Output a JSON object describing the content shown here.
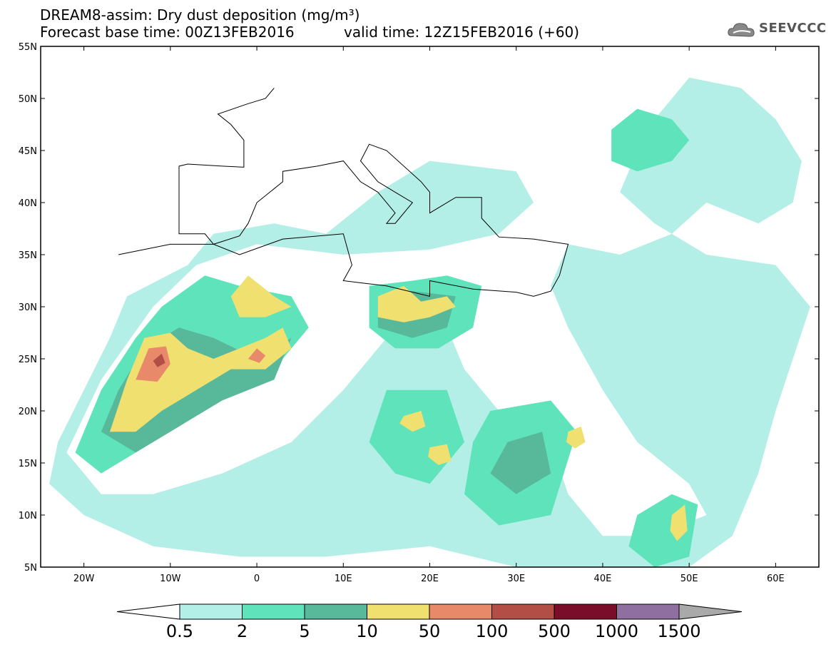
{
  "header": {
    "title_line1": "DREAM8-assim: Dry dust deposition (mg/m³)",
    "title_line2": "Forecast base time: 00Z13FEB2016",
    "valid_time": "valid time: 12Z15FEB2016 (+60)"
  },
  "logo": {
    "text": "SEEVCCC",
    "icon": "cloud-icon"
  },
  "map": {
    "lon_range": [
      -25,
      65
    ],
    "lat_range": [
      5,
      55
    ],
    "lat_ticks": [
      {
        "value": 55,
        "label": "55N"
      },
      {
        "value": 50,
        "label": "50N"
      },
      {
        "value": 45,
        "label": "45N"
      },
      {
        "value": 40,
        "label": "40N"
      },
      {
        "value": 35,
        "label": "35N"
      },
      {
        "value": 30,
        "label": "30N"
      },
      {
        "value": 25,
        "label": "25N"
      },
      {
        "value": 20,
        "label": "20N"
      },
      {
        "value": 15,
        "label": "15N"
      },
      {
        "value": 10,
        "label": "10N"
      },
      {
        "value": 5,
        "label": "5N"
      }
    ],
    "lon_ticks": [
      {
        "value": -20,
        "label": "20W"
      },
      {
        "value": -10,
        "label": "10W"
      },
      {
        "value": 0,
        "label": "0"
      },
      {
        "value": 10,
        "label": "10E"
      },
      {
        "value": 20,
        "label": "20E"
      },
      {
        "value": 30,
        "label": "30E"
      },
      {
        "value": 40,
        "label": "40E"
      },
      {
        "value": 50,
        "label": "50E"
      },
      {
        "value": 60,
        "label": "60E"
      }
    ]
  },
  "colorbar": {
    "labels": [
      "0.5",
      "2",
      "5",
      "10",
      "50",
      "100",
      "500",
      "1000",
      "1500"
    ],
    "colors": [
      "#b3efe6",
      "#5fe3bb",
      "#58b99a",
      "#f0e070",
      "#e8896a",
      "#b24e45",
      "#7a0d2a",
      "#8f6fa0"
    ],
    "under_color": "#ffffff",
    "over_color": "#a9a9a9"
  },
  "chart_data": {
    "type": "heatmap",
    "title": "DREAM8-assim: Dry dust deposition (mg/m³)",
    "units": "mg/m³",
    "levels": [
      0.5,
      2,
      5,
      10,
      50,
      100,
      500,
      1000,
      1500
    ],
    "regions": [
      {
        "level": 0.5,
        "polygon": [
          [
            -22,
            16
          ],
          [
            -18,
            23
          ],
          [
            -12,
            30
          ],
          [
            -7,
            34
          ],
          [
            0,
            36
          ],
          [
            10,
            35
          ],
          [
            20,
            35.5
          ],
          [
            28,
            37
          ],
          [
            32,
            40
          ],
          [
            30,
            43
          ],
          [
            20,
            44
          ],
          [
            14,
            41
          ],
          [
            8,
            37
          ],
          [
            2,
            38
          ],
          [
            -5,
            37
          ],
          [
            -8,
            34
          ],
          [
            -15,
            31
          ],
          [
            -17,
            27
          ],
          [
            -20,
            22
          ],
          [
            -23,
            17
          ],
          [
            -24,
            13
          ],
          [
            -20,
            10
          ],
          [
            -12,
            7
          ],
          [
            -2,
            6
          ],
          [
            8,
            6
          ],
          [
            20,
            7
          ],
          [
            30,
            5
          ],
          [
            40,
            5
          ],
          [
            50,
            5
          ],
          [
            55,
            8
          ],
          [
            58,
            14
          ],
          [
            60,
            20
          ],
          [
            62,
            25
          ],
          [
            64,
            30
          ],
          [
            60,
            34
          ],
          [
            52,
            35
          ],
          [
            46,
            38
          ],
          [
            42,
            41
          ],
          [
            44,
            45
          ],
          [
            46,
            48
          ],
          [
            50,
            52
          ],
          [
            56,
            51
          ],
          [
            60,
            48
          ],
          [
            63,
            44
          ],
          [
            62,
            40
          ],
          [
            58,
            38
          ],
          [
            52,
            40
          ],
          [
            48,
            37
          ],
          [
            42,
            35
          ],
          [
            36,
            36
          ],
          [
            34,
            32
          ],
          [
            36,
            28
          ],
          [
            40,
            22
          ],
          [
            44,
            17
          ],
          [
            50,
            13
          ],
          [
            52,
            10
          ],
          [
            46,
            8
          ],
          [
            40,
            8
          ],
          [
            36,
            12
          ],
          [
            34,
            17
          ],
          [
            28,
            20
          ],
          [
            24,
            24
          ],
          [
            22,
            28
          ],
          [
            16,
            28
          ],
          [
            10,
            22
          ],
          [
            4,
            17
          ],
          [
            -4,
            14
          ],
          [
            -12,
            12
          ],
          [
            -18,
            12
          ]
        ]
      },
      {
        "level": 2,
        "polygon": [
          [
            -21,
            16
          ],
          [
            -18,
            22
          ],
          [
            -14,
            27
          ],
          [
            -11,
            30
          ],
          [
            -6,
            33
          ],
          [
            -2,
            32
          ],
          [
            4,
            31
          ],
          [
            6,
            28
          ],
          [
            2,
            24
          ],
          [
            -4,
            22
          ],
          [
            -10,
            19
          ],
          [
            -14,
            16
          ],
          [
            -18,
            14
          ]
        ]
      },
      {
        "level": 2,
        "polygon": [
          [
            13,
            32
          ],
          [
            18,
            32.5
          ],
          [
            22,
            33
          ],
          [
            26,
            32
          ],
          [
            25,
            28
          ],
          [
            21,
            26
          ],
          [
            16,
            26
          ],
          [
            13,
            28
          ]
        ]
      },
      {
        "level": 2,
        "polygon": [
          [
            15,
            22
          ],
          [
            22,
            22
          ],
          [
            24,
            17
          ],
          [
            20,
            13
          ],
          [
            16,
            14
          ],
          [
            13,
            17
          ]
        ]
      },
      {
        "level": 2,
        "polygon": [
          [
            27,
            20
          ],
          [
            34,
            21
          ],
          [
            37,
            18
          ],
          [
            34,
            10
          ],
          [
            28,
            9
          ],
          [
            24,
            12
          ],
          [
            25,
            17
          ]
        ]
      },
      {
        "level": 2,
        "polygon": [
          [
            41,
            47
          ],
          [
            44,
            49
          ],
          [
            48,
            48
          ],
          [
            50,
            46
          ],
          [
            48,
            44
          ],
          [
            44,
            43
          ],
          [
            41,
            44
          ]
        ]
      },
      {
        "level": 2,
        "polygon": [
          [
            44,
            10
          ],
          [
            48,
            12
          ],
          [
            51,
            11
          ],
          [
            50,
            6
          ],
          [
            46,
            5
          ],
          [
            43,
            7
          ]
        ]
      },
      {
        "level": 5,
        "polygon": [
          [
            -18,
            18
          ],
          [
            -16,
            22
          ],
          [
            -13,
            26
          ],
          [
            -9,
            28
          ],
          [
            -5,
            27
          ],
          [
            0,
            25
          ],
          [
            4,
            27
          ],
          [
            2,
            23
          ],
          [
            -4,
            21
          ],
          [
            -10,
            18
          ],
          [
            -14,
            16
          ]
        ]
      },
      {
        "level": 5,
        "polygon": [
          [
            14,
            31
          ],
          [
            18,
            31.5
          ],
          [
            23,
            31
          ],
          [
            22,
            28
          ],
          [
            18,
            27
          ],
          [
            14,
            28
          ]
        ]
      },
      {
        "level": 5,
        "polygon": [
          [
            29,
            17
          ],
          [
            33,
            18
          ],
          [
            34,
            14
          ],
          [
            30,
            12
          ],
          [
            27,
            14
          ]
        ]
      },
      {
        "level": 10,
        "polygon": [
          [
            -17,
            18
          ],
          [
            -15,
            23
          ],
          [
            -13,
            27
          ],
          [
            -10,
            27.5
          ],
          [
            -8,
            26
          ],
          [
            -5,
            25
          ],
          [
            -2,
            26
          ],
          [
            1,
            27
          ],
          [
            3,
            28
          ],
          [
            4,
            26
          ],
          [
            1,
            24
          ],
          [
            -3,
            24
          ],
          [
            -7,
            22
          ],
          [
            -11,
            20
          ],
          [
            -14,
            18
          ]
        ]
      },
      {
        "level": 10,
        "polygon": [
          [
            -3,
            31
          ],
          [
            -1,
            33
          ],
          [
            2,
            31
          ],
          [
            4,
            30
          ],
          [
            1,
            29
          ],
          [
            -2,
            29
          ]
        ]
      },
      {
        "level": 10,
        "polygon": [
          [
            14,
            31
          ],
          [
            17,
            32
          ],
          [
            19,
            30.5
          ],
          [
            22,
            31
          ],
          [
            23,
            30
          ],
          [
            20,
            29
          ],
          [
            17,
            28.5
          ],
          [
            14,
            29
          ]
        ]
      },
      {
        "level": 10,
        "polygon": [
          [
            17,
            19.5
          ],
          [
            19,
            20
          ],
          [
            19.5,
            18.5
          ],
          [
            18,
            18
          ],
          [
            16.5,
            18.8
          ]
        ]
      },
      {
        "level": 10,
        "polygon": [
          [
            20,
            16.5
          ],
          [
            22,
            16.8
          ],
          [
            22.5,
            15.2
          ],
          [
            21,
            14.8
          ],
          [
            19.8,
            15.6
          ]
        ]
      },
      {
        "level": 10,
        "polygon": [
          [
            36,
            18
          ],
          [
            37.5,
            18.5
          ],
          [
            38,
            17
          ],
          [
            36.8,
            16.4
          ],
          [
            35.8,
            17
          ]
        ]
      },
      {
        "level": 10,
        "polygon": [
          [
            48,
            10
          ],
          [
            49.5,
            11
          ],
          [
            49.8,
            8.5
          ],
          [
            48.6,
            7.5
          ],
          [
            47.8,
            8.5
          ]
        ]
      },
      {
        "level": 50,
        "polygon": [
          [
            -14,
            23
          ],
          [
            -12.5,
            26
          ],
          [
            -10.5,
            26.2
          ],
          [
            -10,
            24.5
          ],
          [
            -11.5,
            22.8
          ]
        ]
      },
      {
        "level": 50,
        "polygon": [
          [
            -1,
            25
          ],
          [
            0,
            26
          ],
          [
            1,
            25.3
          ],
          [
            0.3,
            24.6
          ]
        ]
      },
      {
        "level": 100,
        "polygon": [
          [
            -12,
            24.8
          ],
          [
            -11,
            25.5
          ],
          [
            -10.6,
            24.6
          ],
          [
            -11.5,
            24.2
          ]
        ]
      }
    ],
    "coastline_lon_lat": [
      [
        -16,
        35
      ],
      [
        -10,
        36
      ],
      [
        -5,
        36
      ],
      [
        -2,
        35
      ],
      [
        3,
        36.5
      ],
      [
        10,
        37
      ],
      [
        11,
        34
      ],
      [
        10,
        32.5
      ],
      [
        15,
        32
      ],
      [
        20,
        31
      ],
      [
        20,
        32.5
      ],
      [
        25,
        31.7
      ],
      [
        30,
        31.4
      ],
      [
        32,
        31
      ],
      [
        34,
        31.5
      ],
      [
        35,
        33
      ],
      [
        36,
        36
      ],
      [
        32,
        36.5
      ],
      [
        28,
        36.7
      ],
      [
        26,
        38.5
      ],
      [
        26,
        40.5
      ],
      [
        23,
        40.5
      ],
      [
        20,
        39
      ],
      [
        20,
        41
      ],
      [
        19,
        42
      ],
      [
        15,
        45
      ],
      [
        13,
        45.6
      ],
      [
        12,
        44
      ],
      [
        14,
        42
      ],
      [
        16,
        41
      ],
      [
        18,
        40
      ],
      [
        16,
        38
      ],
      [
        15,
        38
      ],
      [
        16,
        39
      ],
      [
        14,
        41
      ],
      [
        12,
        42
      ],
      [
        10,
        44
      ],
      [
        7,
        43.5
      ],
      [
        3,
        43
      ],
      [
        3,
        42
      ],
      [
        0,
        40
      ],
      [
        -1,
        38
      ],
      [
        -2,
        36.8
      ],
      [
        -5,
        36
      ],
      [
        -6,
        37
      ],
      [
        -9,
        37
      ],
      [
        -9,
        39
      ],
      [
        -9,
        42
      ],
      [
        -9,
        43.5
      ],
      [
        -8,
        43.7
      ],
      [
        -4,
        43.5
      ],
      [
        -1.5,
        43.4
      ],
      [
        -1.5,
        46
      ],
      [
        -3,
        47.5
      ],
      [
        -4.5,
        48.5
      ],
      [
        -1,
        49.5
      ],
      [
        1,
        50
      ],
      [
        2,
        51
      ]
    ]
  }
}
